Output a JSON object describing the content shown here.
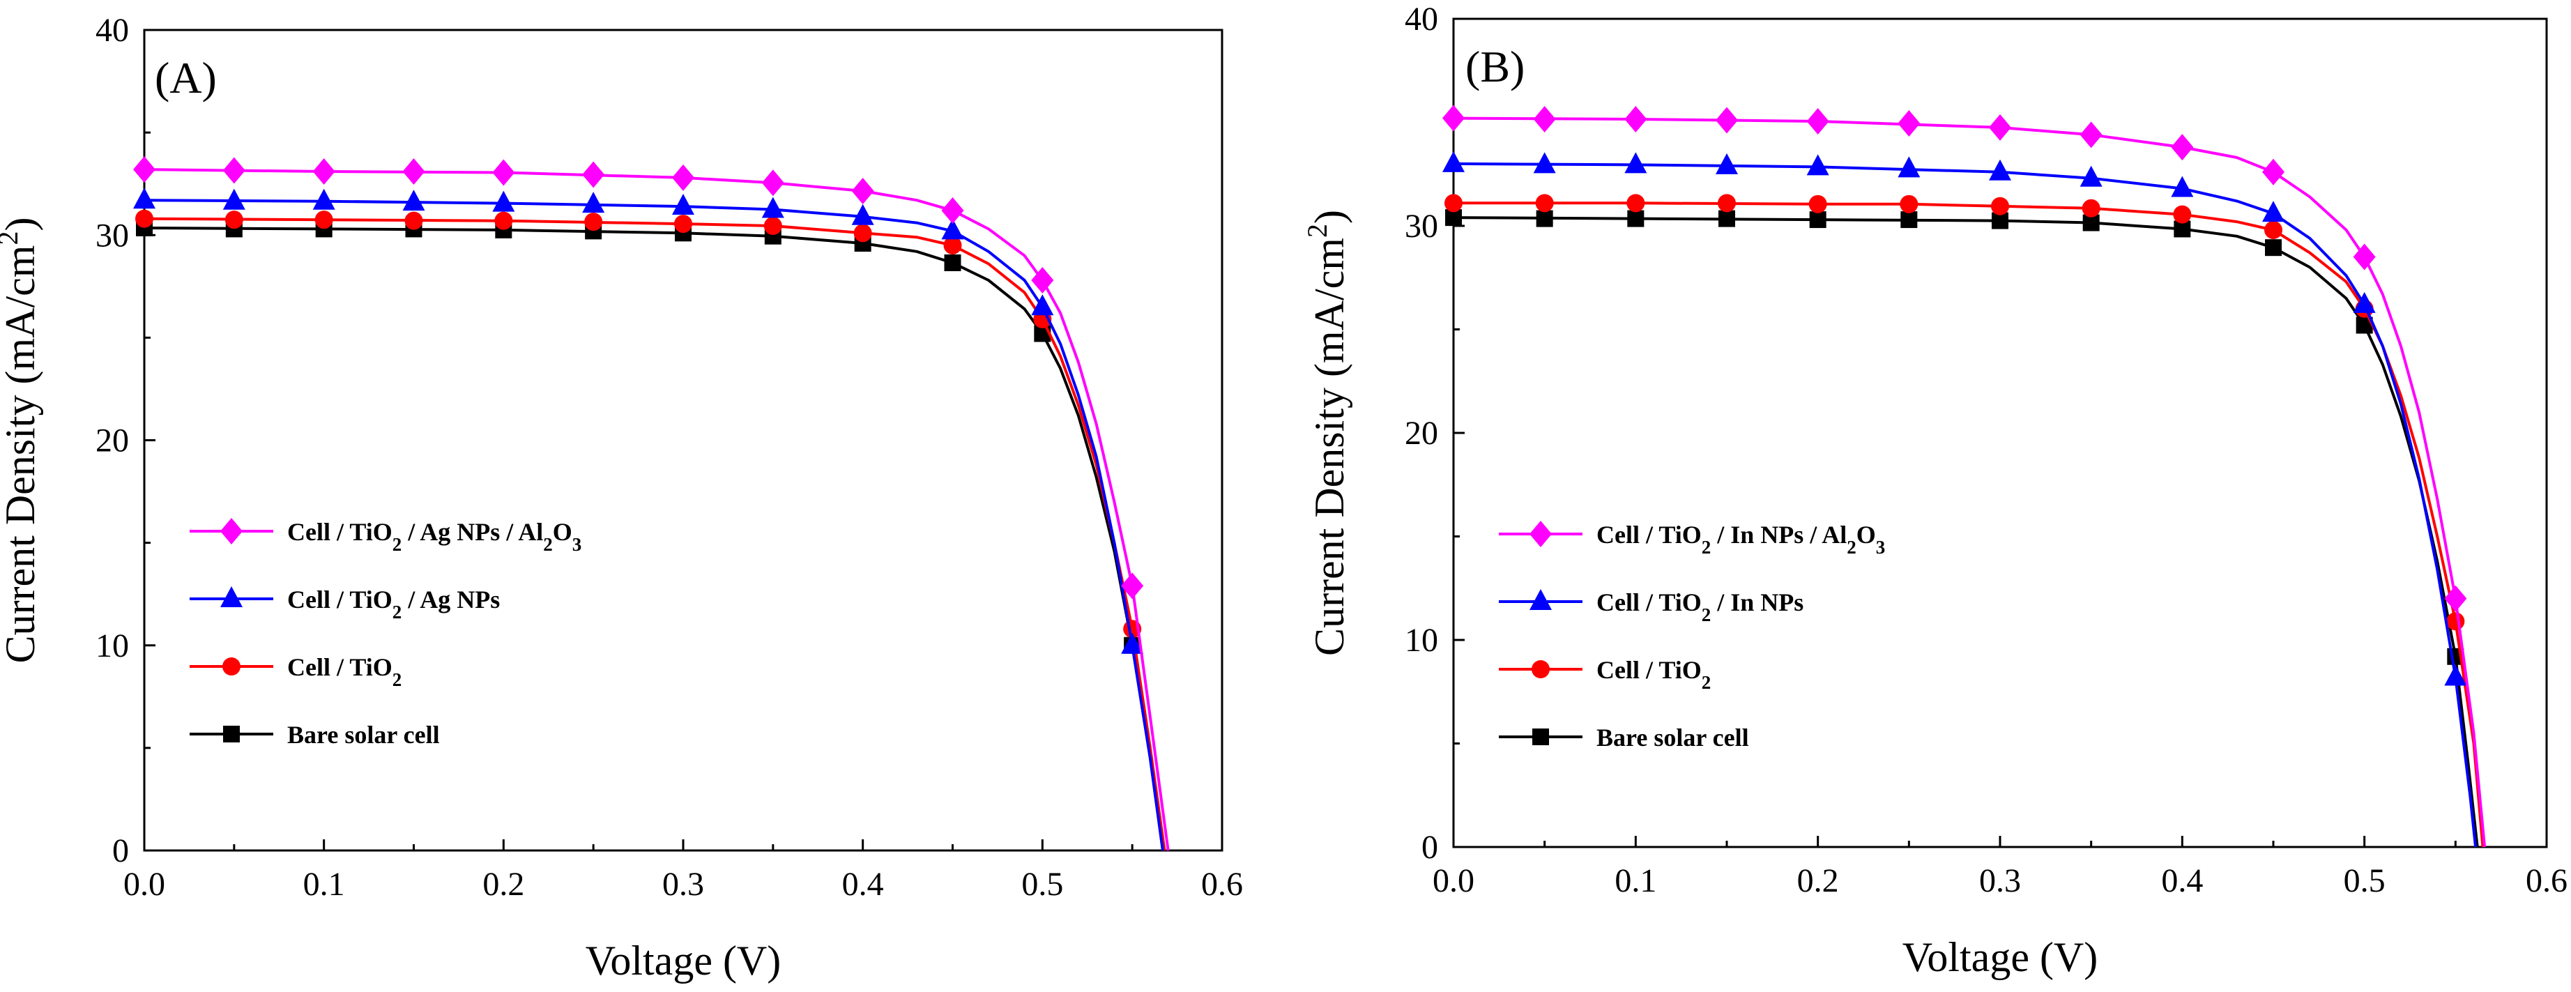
{
  "chart_data": [
    {
      "type": "line",
      "panel_label": "(A)",
      "xlabel": "Voltage (V)",
      "ylabel": {
        "main": "Current Density (mA/cm",
        "sup": "2",
        "end": ")"
      },
      "xlim": [
        0,
        0.6
      ],
      "ylim": [
        0,
        40
      ],
      "x_ticks": [
        "0.0",
        "0.1",
        "0.2",
        "0.3",
        "0.4",
        "0.5",
        "0.6"
      ],
      "y_ticks": [
        "0",
        "10",
        "20",
        "30",
        "40"
      ],
      "legend_position": "center-left",
      "grid": false,
      "series": [
        {
          "name": "Cell / TiO2 / Ag NPs / Al2O3",
          "label_parts": [
            [
              "Cell / TiO",
              ""
            ],
            [
              "2",
              "sub"
            ],
            [
              " / Ag NPs / Al",
              ""
            ],
            [
              "2",
              "sub"
            ],
            [
              "O",
              ""
            ],
            [
              "3",
              "sub"
            ]
          ],
          "color": "#ff00ff",
          "marker": "diamond",
          "marker_x": [
            0,
            0.05,
            0.1,
            0.15,
            0.2,
            0.25,
            0.3,
            0.35,
            0.4,
            0.45,
            0.5,
            0.55
          ],
          "marker_y": [
            33.2,
            33.15,
            33.1,
            33.1,
            33.05,
            32.95,
            32.8,
            32.55,
            32.15,
            31.2,
            27.8,
            12.9
          ],
          "curve": [
            [
              0,
              33.2
            ],
            [
              0.1,
              33.1
            ],
            [
              0.2,
              33.05
            ],
            [
              0.3,
              32.8
            ],
            [
              0.35,
              32.55
            ],
            [
              0.4,
              32.15
            ],
            [
              0.43,
              31.7
            ],
            [
              0.45,
              31.2
            ],
            [
              0.47,
              30.3
            ],
            [
              0.49,
              29.0
            ],
            [
              0.5,
              27.8
            ],
            [
              0.51,
              26.2
            ],
            [
              0.52,
              23.8
            ],
            [
              0.53,
              20.8
            ],
            [
              0.54,
              17.0
            ],
            [
              0.55,
              12.9
            ],
            [
              0.56,
              6.5
            ],
            [
              0.57,
              0
            ]
          ]
        },
        {
          "name": "Cell / TiO2 / Ag NPs",
          "label_parts": [
            [
              "Cell / TiO",
              ""
            ],
            [
              "2",
              "sub"
            ],
            [
              " / Ag NPs",
              ""
            ]
          ],
          "color": "#0000ff",
          "marker": "triangle",
          "marker_x": [
            0,
            0.05,
            0.1,
            0.15,
            0.2,
            0.25,
            0.3,
            0.35,
            0.4,
            0.45,
            0.5,
            0.55
          ],
          "marker_y": [
            31.7,
            31.65,
            31.65,
            31.6,
            31.55,
            31.5,
            31.4,
            31.25,
            30.9,
            30.2,
            26.5,
            10.0
          ],
          "curve": [
            [
              0,
              31.7
            ],
            [
              0.1,
              31.65
            ],
            [
              0.2,
              31.55
            ],
            [
              0.3,
              31.4
            ],
            [
              0.35,
              31.25
            ],
            [
              0.4,
              30.9
            ],
            [
              0.43,
              30.6
            ],
            [
              0.45,
              30.2
            ],
            [
              0.47,
              29.2
            ],
            [
              0.49,
              27.8
            ],
            [
              0.5,
              26.5
            ],
            [
              0.51,
              24.7
            ],
            [
              0.52,
              22.2
            ],
            [
              0.53,
              19.2
            ],
            [
              0.54,
              15.0
            ],
            [
              0.55,
              10.0
            ],
            [
              0.56,
              4.5
            ],
            [
              0.567,
              0
            ]
          ]
        },
        {
          "name": "Cell / TiO2",
          "label_parts": [
            [
              "Cell / TiO",
              ""
            ],
            [
              "2",
              "sub"
            ]
          ],
          "color": "#ff0000",
          "marker": "circle",
          "marker_x": [
            0,
            0.05,
            0.1,
            0.15,
            0.2,
            0.25,
            0.3,
            0.35,
            0.4,
            0.45,
            0.5,
            0.55
          ],
          "marker_y": [
            30.8,
            30.75,
            30.75,
            30.7,
            30.7,
            30.65,
            30.55,
            30.45,
            30.1,
            29.5,
            25.9,
            10.8
          ],
          "curve": [
            [
              0,
              30.8
            ],
            [
              0.1,
              30.75
            ],
            [
              0.2,
              30.7
            ],
            [
              0.3,
              30.55
            ],
            [
              0.35,
              30.45
            ],
            [
              0.4,
              30.1
            ],
            [
              0.43,
              29.9
            ],
            [
              0.45,
              29.5
            ],
            [
              0.47,
              28.6
            ],
            [
              0.49,
              27.2
            ],
            [
              0.5,
              25.9
            ],
            [
              0.51,
              24.1
            ],
            [
              0.52,
              21.7
            ],
            [
              0.53,
              18.8
            ],
            [
              0.54,
              15.0
            ],
            [
              0.55,
              10.8
            ],
            [
              0.56,
              5.0
            ],
            [
              0.568,
              0
            ]
          ]
        },
        {
          "name": "Bare solar cell",
          "label_parts": [
            [
              "Bare solar cell",
              ""
            ]
          ],
          "color": "#000000",
          "marker": "square",
          "marker_x": [
            0,
            0.05,
            0.1,
            0.15,
            0.2,
            0.25,
            0.3,
            0.35,
            0.4,
            0.45,
            0.5,
            0.55
          ],
          "marker_y": [
            30.35,
            30.3,
            30.3,
            30.3,
            30.25,
            30.2,
            30.1,
            29.95,
            29.6,
            28.65,
            25.2,
            10.0
          ],
          "curve": [
            [
              0,
              30.35
            ],
            [
              0.1,
              30.3
            ],
            [
              0.2,
              30.25
            ],
            [
              0.3,
              30.1
            ],
            [
              0.35,
              29.95
            ],
            [
              0.4,
              29.6
            ],
            [
              0.43,
              29.2
            ],
            [
              0.45,
              28.65
            ],
            [
              0.47,
              27.8
            ],
            [
              0.49,
              26.4
            ],
            [
              0.5,
              25.2
            ],
            [
              0.51,
              23.5
            ],
            [
              0.52,
              21.2
            ],
            [
              0.53,
              18.2
            ],
            [
              0.54,
              14.6
            ],
            [
              0.55,
              10.0
            ],
            [
              0.56,
              4.5
            ],
            [
              0.567,
              0
            ]
          ]
        }
      ]
    },
    {
      "type": "line",
      "panel_label": "(B)",
      "xlabel": "Voltage (V)",
      "ylabel": {
        "main": "Current Density (mA/cm",
        "sup": "2",
        "end": ")"
      },
      "xlim": [
        0,
        0.6
      ],
      "ylim": [
        0,
        40
      ],
      "x_ticks": [
        "0.0",
        "0.1",
        "0.2",
        "0.3",
        "0.4",
        "0.5",
        "0.6"
      ],
      "y_ticks": [
        "0",
        "10",
        "20",
        "30",
        "40"
      ],
      "legend_position": "center-left",
      "grid": false,
      "series": [
        {
          "name": "Cell / TiO2 / In NPs / Al2O3",
          "label_parts": [
            [
              "Cell / TiO",
              ""
            ],
            [
              "2",
              "sub"
            ],
            [
              " / In NPs / Al",
              ""
            ],
            [
              "2",
              "sub"
            ],
            [
              "O",
              ""
            ],
            [
              "3",
              "sub"
            ]
          ],
          "color": "#ff00ff",
          "marker": "diamond",
          "marker_x": [
            0,
            0.05,
            0.1,
            0.15,
            0.2,
            0.25,
            0.3,
            0.35,
            0.4,
            0.45,
            0.5,
            0.55
          ],
          "marker_y": [
            35.2,
            35.15,
            35.15,
            35.1,
            35.05,
            34.95,
            34.75,
            34.4,
            33.8,
            32.6,
            28.5,
            12.0
          ],
          "curve": [
            [
              0,
              35.2
            ],
            [
              0.1,
              35.15
            ],
            [
              0.2,
              35.05
            ],
            [
              0.3,
              34.75
            ],
            [
              0.35,
              34.4
            ],
            [
              0.4,
              33.8
            ],
            [
              0.43,
              33.3
            ],
            [
              0.45,
              32.6
            ],
            [
              0.47,
              31.4
            ],
            [
              0.49,
              29.8
            ],
            [
              0.5,
              28.5
            ],
            [
              0.51,
              26.7
            ],
            [
              0.52,
              24.2
            ],
            [
              0.53,
              21.0
            ],
            [
              0.54,
              16.8
            ],
            [
              0.55,
              12.0
            ],
            [
              0.56,
              5.5
            ],
            [
              0.566,
              0
            ]
          ]
        },
        {
          "name": "Cell / TiO2 / In NPs",
          "label_parts": [
            [
              "Cell / TiO",
              ""
            ],
            [
              "2",
              "sub"
            ],
            [
              " / In NPs",
              ""
            ]
          ],
          "color": "#0000ff",
          "marker": "triangle",
          "marker_x": [
            0,
            0.05,
            0.1,
            0.15,
            0.2,
            0.25,
            0.3,
            0.35,
            0.4,
            0.45,
            0.5,
            0.55
          ],
          "marker_y": [
            33.0,
            32.95,
            32.95,
            32.9,
            32.85,
            32.75,
            32.6,
            32.3,
            31.8,
            30.6,
            26.2,
            8.2
          ],
          "curve": [
            [
              0,
              33.0
            ],
            [
              0.1,
              32.95
            ],
            [
              0.2,
              32.85
            ],
            [
              0.3,
              32.6
            ],
            [
              0.35,
              32.3
            ],
            [
              0.4,
              31.8
            ],
            [
              0.43,
              31.2
            ],
            [
              0.45,
              30.6
            ],
            [
              0.47,
              29.4
            ],
            [
              0.49,
              27.6
            ],
            [
              0.5,
              26.2
            ],
            [
              0.51,
              24.2
            ],
            [
              0.52,
              21.4
            ],
            [
              0.53,
              17.8
            ],
            [
              0.54,
              13.4
            ],
            [
              0.55,
              8.2
            ],
            [
              0.558,
              2.5
            ],
            [
              0.561,
              0
            ]
          ]
        },
        {
          "name": "Cell / TiO2",
          "label_parts": [
            [
              "Cell / TiO",
              ""
            ],
            [
              "2",
              "sub"
            ]
          ],
          "color": "#ff0000",
          "marker": "circle",
          "marker_x": [
            0,
            0.05,
            0.1,
            0.15,
            0.2,
            0.25,
            0.3,
            0.35,
            0.4,
            0.45,
            0.5,
            0.55
          ],
          "marker_y": [
            31.1,
            31.1,
            31.1,
            31.1,
            31.05,
            31.05,
            30.95,
            30.85,
            30.55,
            29.8,
            26.0,
            10.9
          ],
          "curve": [
            [
              0,
              31.1
            ],
            [
              0.1,
              31.1
            ],
            [
              0.2,
              31.05
            ],
            [
              0.25,
              31.05
            ],
            [
              0.3,
              30.95
            ],
            [
              0.35,
              30.85
            ],
            [
              0.4,
              30.55
            ],
            [
              0.43,
              30.2
            ],
            [
              0.45,
              29.8
            ],
            [
              0.47,
              28.7
            ],
            [
              0.49,
              27.3
            ],
            [
              0.5,
              26.0
            ],
            [
              0.51,
              24.2
            ],
            [
              0.52,
              21.8
            ],
            [
              0.53,
              18.8
            ],
            [
              0.54,
              15.0
            ],
            [
              0.55,
              10.9
            ],
            [
              0.56,
              5.0
            ],
            [
              0.565,
              0
            ]
          ]
        },
        {
          "name": "Bare solar cell",
          "label_parts": [
            [
              "Bare solar cell",
              ""
            ]
          ],
          "color": "#000000",
          "marker": "square",
          "marker_x": [
            0,
            0.05,
            0.1,
            0.15,
            0.2,
            0.25,
            0.3,
            0.35,
            0.4,
            0.45,
            0.5,
            0.55
          ],
          "marker_y": [
            30.4,
            30.35,
            30.35,
            30.35,
            30.3,
            30.3,
            30.25,
            30.15,
            29.85,
            28.95,
            25.2,
            9.2
          ],
          "curve": [
            [
              0,
              30.4
            ],
            [
              0.1,
              30.35
            ],
            [
              0.2,
              30.3
            ],
            [
              0.3,
              30.25
            ],
            [
              0.35,
              30.15
            ],
            [
              0.4,
              29.85
            ],
            [
              0.43,
              29.5
            ],
            [
              0.45,
              28.95
            ],
            [
              0.47,
              28.0
            ],
            [
              0.49,
              26.5
            ],
            [
              0.5,
              25.2
            ],
            [
              0.51,
              23.3
            ],
            [
              0.52,
              20.8
            ],
            [
              0.53,
              17.7
            ],
            [
              0.54,
              13.8
            ],
            [
              0.55,
              9.2
            ],
            [
              0.557,
              4.0
            ],
            [
              0.562,
              0
            ]
          ]
        }
      ]
    }
  ]
}
